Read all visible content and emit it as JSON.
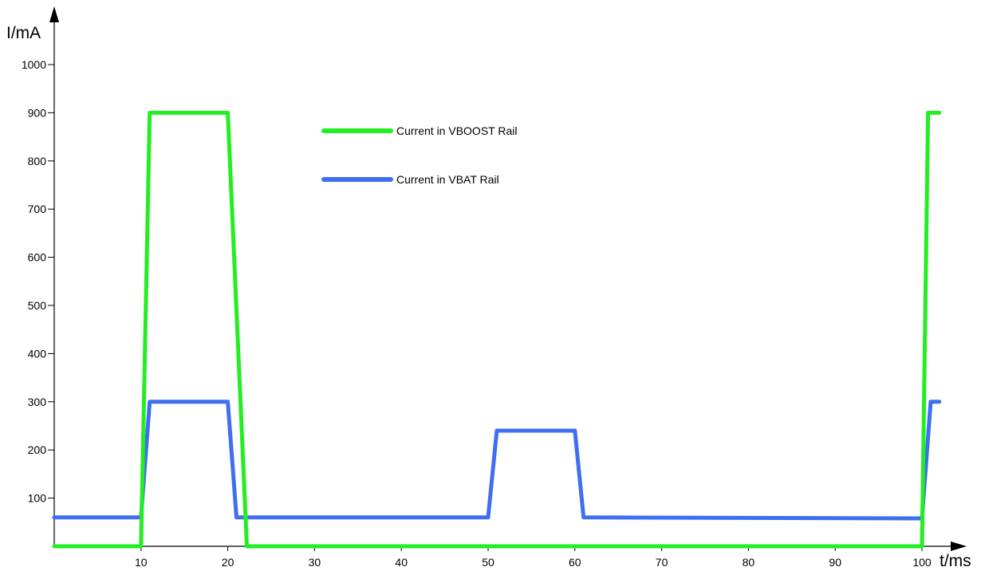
{
  "chart_data": {
    "type": "line",
    "title": "",
    "xlabel": "t/ms",
    "ylabel": "I/mA",
    "xlim": [
      0,
      102
    ],
    "ylim": [
      0,
      1000
    ],
    "x_ticks": [
      10,
      20,
      30,
      40,
      50,
      60,
      70,
      80,
      90,
      100
    ],
    "y_ticks": [
      100,
      200,
      300,
      400,
      500,
      600,
      700,
      800,
      900,
      1000
    ],
    "grid": false,
    "legend": "top-center",
    "series": [
      {
        "name": "Current in VBOOST Rail",
        "color": "#22ee22",
        "points": [
          [
            0,
            0
          ],
          [
            10,
            0
          ],
          [
            11,
            900
          ],
          [
            20,
            900
          ],
          [
            22.2,
            0
          ],
          [
            100,
            0
          ],
          [
            100.7,
            900
          ],
          [
            102,
            900
          ]
        ]
      },
      {
        "name": "Current in VBAT Rail",
        "color": "#3f6ff0",
        "points": [
          [
            0,
            60
          ],
          [
            10,
            60
          ],
          [
            11,
            300
          ],
          [
            20,
            300
          ],
          [
            21,
            60
          ],
          [
            50,
            60
          ],
          [
            51,
            240
          ],
          [
            60,
            240
          ],
          [
            61,
            60
          ],
          [
            100,
            58
          ],
          [
            101,
            300
          ],
          [
            102,
            300
          ]
        ]
      }
    ]
  }
}
